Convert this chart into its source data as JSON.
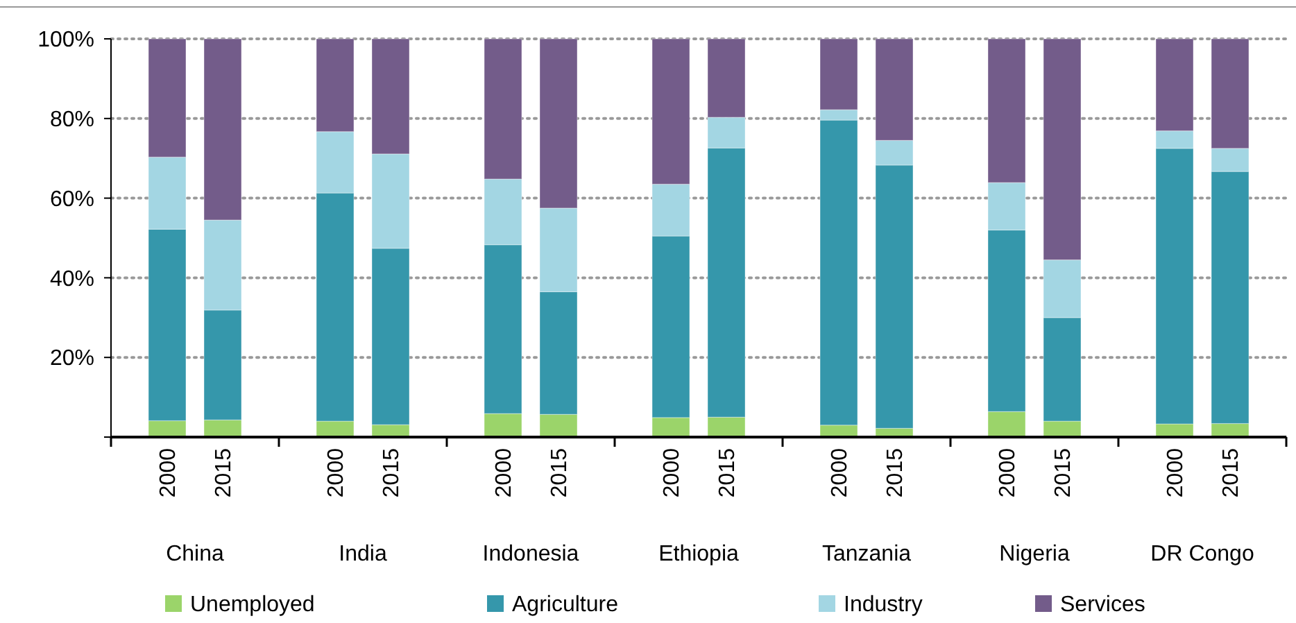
{
  "chart_data": {
    "type": "bar",
    "stacked": true,
    "categories": [
      "2000",
      "2015",
      "2000",
      "2015",
      "2000",
      "2015",
      "2000",
      "2015",
      "2000",
      "2015",
      "2000",
      "2015",
      "2000",
      "2015"
    ],
    "annotations": [
      "China",
      "India",
      "Indonesia",
      "Ethiopia",
      "Tanzania",
      "Nigeria",
      "DR Congo"
    ],
    "series": [
      {
        "name": "Unemployed",
        "color": "#9bd46a",
        "values": [
          4.1,
          4.3,
          4.0,
          3.1,
          5.9,
          5.7,
          4.9,
          5.0,
          3.0,
          2.2,
          6.4,
          4.0,
          3.3,
          3.4
        ]
      },
      {
        "name": "Agriculture",
        "color": "#3597ab",
        "values": [
          48.1,
          27.6,
          57.3,
          44.3,
          42.4,
          30.8,
          45.6,
          67.6,
          76.6,
          66.1,
          45.6,
          26.0,
          69.2,
          63.3
        ]
      },
      {
        "name": "Industry",
        "color": "#a3d6e3",
        "values": [
          18.1,
          22.6,
          15.4,
          23.7,
          16.5,
          21.0,
          13.0,
          7.7,
          2.6,
          6.2,
          11.9,
          14.5,
          4.4,
          5.8
        ]
      },
      {
        "name": "Services",
        "color": "#735c8a",
        "values": [
          29.7,
          45.5,
          23.3,
          28.9,
          35.2,
          42.5,
          36.5,
          19.7,
          17.8,
          25.5,
          36.1,
          55.5,
          23.1,
          27.5
        ]
      }
    ],
    "ylim": [
      0,
      100
    ],
    "yticks": [
      {
        "value": 0,
        "label": null
      },
      {
        "value": 20,
        "label": "20%"
      },
      {
        "value": 40,
        "label": "40%"
      },
      {
        "value": 60,
        "label": "60%"
      },
      {
        "value": 80,
        "label": "80%"
      },
      {
        "value": 100,
        "label": "100%"
      }
    ],
    "grid": "y",
    "legend": "bottom"
  }
}
